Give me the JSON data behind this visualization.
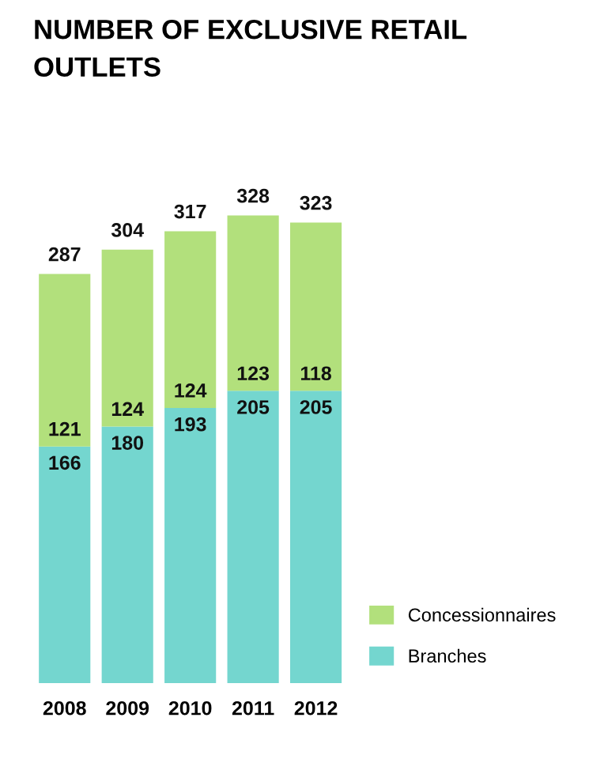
{
  "chart_data": {
    "type": "bar",
    "title": "NUMBER OF EXCLUSIVE RETAIL OUTLETS",
    "categories": [
      "2008",
      "2009",
      "2010",
      "2011",
      "2012"
    ],
    "stacked": true,
    "series": [
      {
        "name": "Branches",
        "color": "#74d6cf",
        "values": [
          166,
          180,
          193,
          205,
          205
        ]
      },
      {
        "name": "Concessionnaires",
        "color": "#b2e07c",
        "values": [
          121,
          124,
          124,
          123,
          118
        ]
      }
    ],
    "data_labels": true,
    "totals": [
      "287",
      "304",
      "317",
      "328",
      "323"
    ],
    "legend": "bottom right",
    "grid": false
  }
}
